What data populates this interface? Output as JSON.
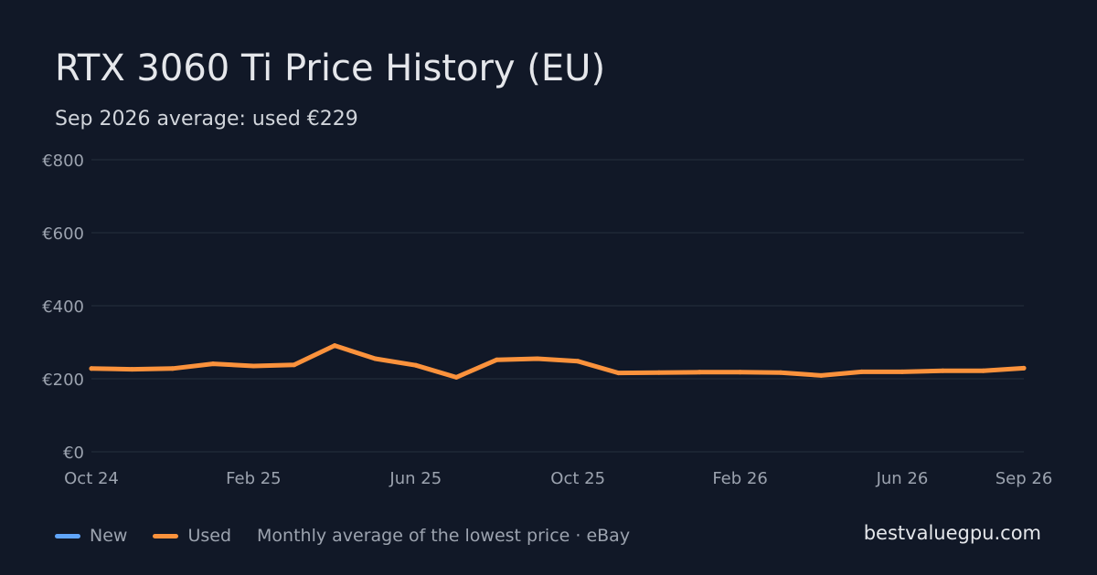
{
  "header": {
    "title": "RTX 3060 Ti Price History (EU)",
    "subtitle": "Sep 2026 average: used €229"
  },
  "legend": {
    "items": [
      {
        "label": "New",
        "color": "#60a5fa"
      },
      {
        "label": "Used",
        "color": "#fb923c"
      }
    ],
    "note": "Monthly average of the lowest price · eBay"
  },
  "brand": "bestvaluegpu.com",
  "colors": {
    "background": "#111827",
    "grid": "#1f2937",
    "axis_text": "#9ca3af",
    "used_line": "#fb923c",
    "new_line": "#60a5fa"
  },
  "chart_data": {
    "type": "line",
    "title": "RTX 3060 Ti Price History (EU)",
    "subtitle": "Sep 2026 average: used €229",
    "x": [
      "2024-10",
      "2024-11",
      "2024-12",
      "2025-01",
      "2025-02",
      "2025-03",
      "2025-04",
      "2025-05",
      "2025-06",
      "2025-07",
      "2025-08",
      "2025-09",
      "2025-10",
      "2025-11",
      "2025-12",
      "2026-01",
      "2026-02",
      "2026-03",
      "2026-04",
      "2026-05",
      "2026-06",
      "2026-07",
      "2026-08",
      "2026-09"
    ],
    "x_tick_labels": [
      "Oct 24",
      "Feb 25",
      "Jun 25",
      "Oct 25",
      "Feb 26",
      "Jun 26",
      "Sep 26"
    ],
    "x_tick_positions": [
      "2024-10",
      "2025-02",
      "2025-06",
      "2025-10",
      "2026-02",
      "2026-06",
      "2026-09"
    ],
    "y_tick_labels": [
      "€0",
      "€200",
      "€400",
      "€600",
      "€800"
    ],
    "y_tick_values": [
      0,
      200,
      400,
      600,
      800
    ],
    "ylim": [
      0,
      800
    ],
    "xlabel": "",
    "ylabel": "",
    "grid": true,
    "legend_position": "bottom-left",
    "series": [
      {
        "name": "Used",
        "color": "#fb923c",
        "values": [
          228,
          226,
          228,
          241,
          235,
          238,
          291,
          255,
          237,
          204,
          252,
          255,
          248,
          216,
          217,
          218,
          218,
          217,
          209,
          219,
          219,
          222,
          222,
          229
        ]
      }
    ]
  }
}
